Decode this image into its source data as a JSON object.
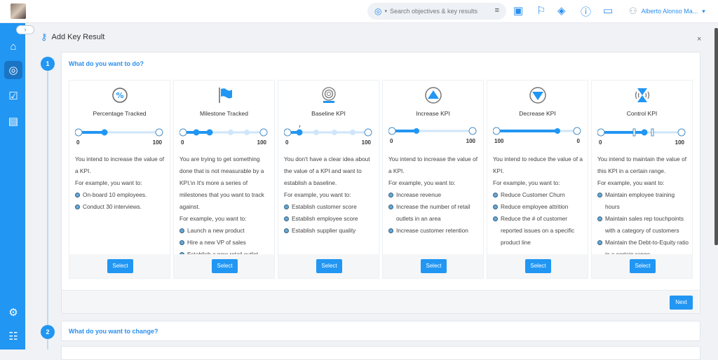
{
  "topbar": {
    "search_placeholder": "Search objectives & key results",
    "user_name": "Alberto Alonso Ma..."
  },
  "page": {
    "title": "Add Key Result",
    "close": "×"
  },
  "step1": {
    "number": "1",
    "title": "What do you want to do?",
    "next_label": "Next"
  },
  "step2": {
    "number": "2",
    "title": "What do you want to change?"
  },
  "colors": {
    "accent": "#2196f3",
    "sidebar": "#2196f3"
  },
  "cards": [
    {
      "title": "Percentage Tracked",
      "icon": "percent-icon",
      "min": "0",
      "max": "100",
      "desc": [
        "You intend to increase the value of a KPI.",
        "For example, you want to:"
      ],
      "items": [
        "On-board 10 employees.",
        "Conduct 30 interviews."
      ],
      "select": "Select"
    },
    {
      "title": "Milestone Tracked",
      "icon": "flag-icon",
      "min": "0",
      "max": "100",
      "desc": [
        "You are trying to get something done that is not measurable by a KPI.\\n It's more a series of milestones that you want to track against.",
        "For example, you want to:"
      ],
      "items": [
        "Launch a new product",
        "Hire a new VP of sales",
        "Establish a new retail outlet"
      ],
      "select": "Select"
    },
    {
      "title": "Baseline KPI",
      "icon": "baseline-icon",
      "min": "0",
      "max": "100",
      "marker": "?",
      "desc": [
        "You don't have a clear idea about the value of a KPI and want to establish a baseline.",
        "For example, you want to:"
      ],
      "items": [
        "Establish customer score",
        "Establish employee score",
        "Establish supplier quality"
      ],
      "select": "Select"
    },
    {
      "title": "Increase KPI",
      "icon": "increase-icon",
      "min": "0",
      "max": "100",
      "desc": [
        "You intend to increase the value of a KPI.",
        "For example, you want to:"
      ],
      "items": [
        "Increase revenue",
        "Increase the number of retail outlets in an area",
        "Increase customer retention"
      ],
      "select": "Select"
    },
    {
      "title": "Decrease KPI",
      "icon": "decrease-icon",
      "min": "100",
      "max": "0",
      "desc": [
        "You intend to reduce the value of a KPI.",
        "For example, you want to:"
      ],
      "items": [
        "Reduce Customer Churn",
        "Reduce employee attrition",
        "Reduce the # of customer reported issues on a specific product line"
      ],
      "select": "Select"
    },
    {
      "title": "Control KPI",
      "icon": "control-icon",
      "min": "0",
      "max": "100",
      "desc": [
        "You intend to maintain the value of this KPI in a certain range.",
        "For example, you want to:"
      ],
      "items": [
        "Maintain employee training hours",
        "Maintain sales rep touchpoints with a category of customers",
        "Maintain the Debt-to-Equity ratio in a certain range"
      ],
      "select": "Select"
    }
  ]
}
